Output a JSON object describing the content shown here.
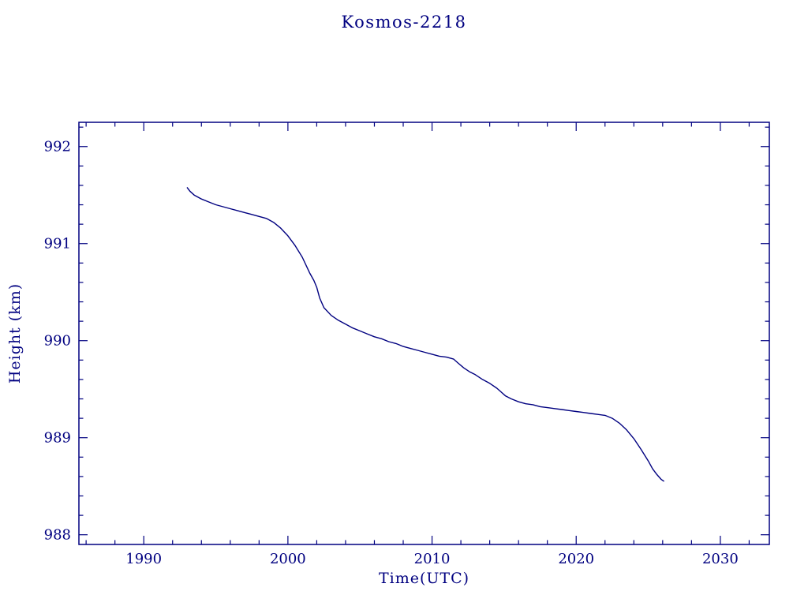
{
  "chart_data": {
    "type": "line",
    "title": "Kosmos-2218",
    "xlabel": "Time(UTC)",
    "ylabel": "Height (km)",
    "xlim": [
      1985.5,
      2033.4
    ],
    "ylim": [
      987.9,
      992.25
    ],
    "x_ticks": [
      1990,
      2000,
      2010,
      2020,
      2030
    ],
    "y_ticks": [
      988,
      989,
      990,
      991,
      992
    ],
    "x_minor_step": 2,
    "y_minor_step": 0.2,
    "grid": false,
    "legend": false,
    "axis_color": "#000080",
    "line_color": "#000080",
    "background_color": "#ffffff",
    "series": [
      {
        "name": "orbit-height",
        "points": [
          [
            1993.0,
            991.58
          ],
          [
            1993.2,
            991.54
          ],
          [
            1993.5,
            991.5
          ],
          [
            1994.0,
            991.46
          ],
          [
            1994.5,
            991.43
          ],
          [
            1995.0,
            991.4
          ],
          [
            1995.5,
            991.38
          ],
          [
            1996.0,
            991.36
          ],
          [
            1996.5,
            991.34
          ],
          [
            1997.0,
            991.32
          ],
          [
            1997.5,
            991.3
          ],
          [
            1998.0,
            991.28
          ],
          [
            1998.5,
            991.26
          ],
          [
            1999.0,
            991.22
          ],
          [
            1999.5,
            991.16
          ],
          [
            2000.0,
            991.08
          ],
          [
            2000.5,
            990.98
          ],
          [
            2001.0,
            990.86
          ],
          [
            2001.5,
            990.7
          ],
          [
            2001.8,
            990.62
          ],
          [
            2002.0,
            990.55
          ],
          [
            2002.2,
            990.44
          ],
          [
            2002.5,
            990.34
          ],
          [
            2003.0,
            990.26
          ],
          [
            2003.5,
            990.21
          ],
          [
            2004.0,
            990.17
          ],
          [
            2004.5,
            990.13
          ],
          [
            2005.0,
            990.1
          ],
          [
            2005.5,
            990.07
          ],
          [
            2006.0,
            990.04
          ],
          [
            2006.5,
            990.02
          ],
          [
            2007.0,
            989.99
          ],
          [
            2007.5,
            989.97
          ],
          [
            2008.0,
            989.94
          ],
          [
            2008.5,
            989.92
          ],
          [
            2009.0,
            989.9
          ],
          [
            2009.5,
            989.88
          ],
          [
            2010.0,
            989.86
          ],
          [
            2010.5,
            989.84
          ],
          [
            2011.0,
            989.83
          ],
          [
            2011.5,
            989.81
          ],
          [
            2011.8,
            989.77
          ],
          [
            2012.2,
            989.72
          ],
          [
            2012.6,
            989.68
          ],
          [
            2013.0,
            989.65
          ],
          [
            2013.5,
            989.6
          ],
          [
            2014.0,
            989.56
          ],
          [
            2014.5,
            989.51
          ],
          [
            2014.8,
            989.47
          ],
          [
            2015.1,
            989.43
          ],
          [
            2015.5,
            989.4
          ],
          [
            2016.0,
            989.37
          ],
          [
            2016.5,
            989.35
          ],
          [
            2017.0,
            989.34
          ],
          [
            2017.5,
            989.32
          ],
          [
            2018.0,
            989.31
          ],
          [
            2018.5,
            989.3
          ],
          [
            2019.0,
            989.29
          ],
          [
            2019.5,
            989.28
          ],
          [
            2020.0,
            989.27
          ],
          [
            2020.5,
            989.26
          ],
          [
            2021.0,
            989.25
          ],
          [
            2021.5,
            989.24
          ],
          [
            2022.0,
            989.23
          ],
          [
            2022.5,
            989.2
          ],
          [
            2023.0,
            989.15
          ],
          [
            2023.5,
            989.08
          ],
          [
            2024.0,
            988.99
          ],
          [
            2024.5,
            988.88
          ],
          [
            2025.0,
            988.76
          ],
          [
            2025.3,
            988.68
          ],
          [
            2025.6,
            988.62
          ],
          [
            2025.9,
            988.57
          ],
          [
            2026.1,
            988.55
          ]
        ]
      }
    ]
  }
}
